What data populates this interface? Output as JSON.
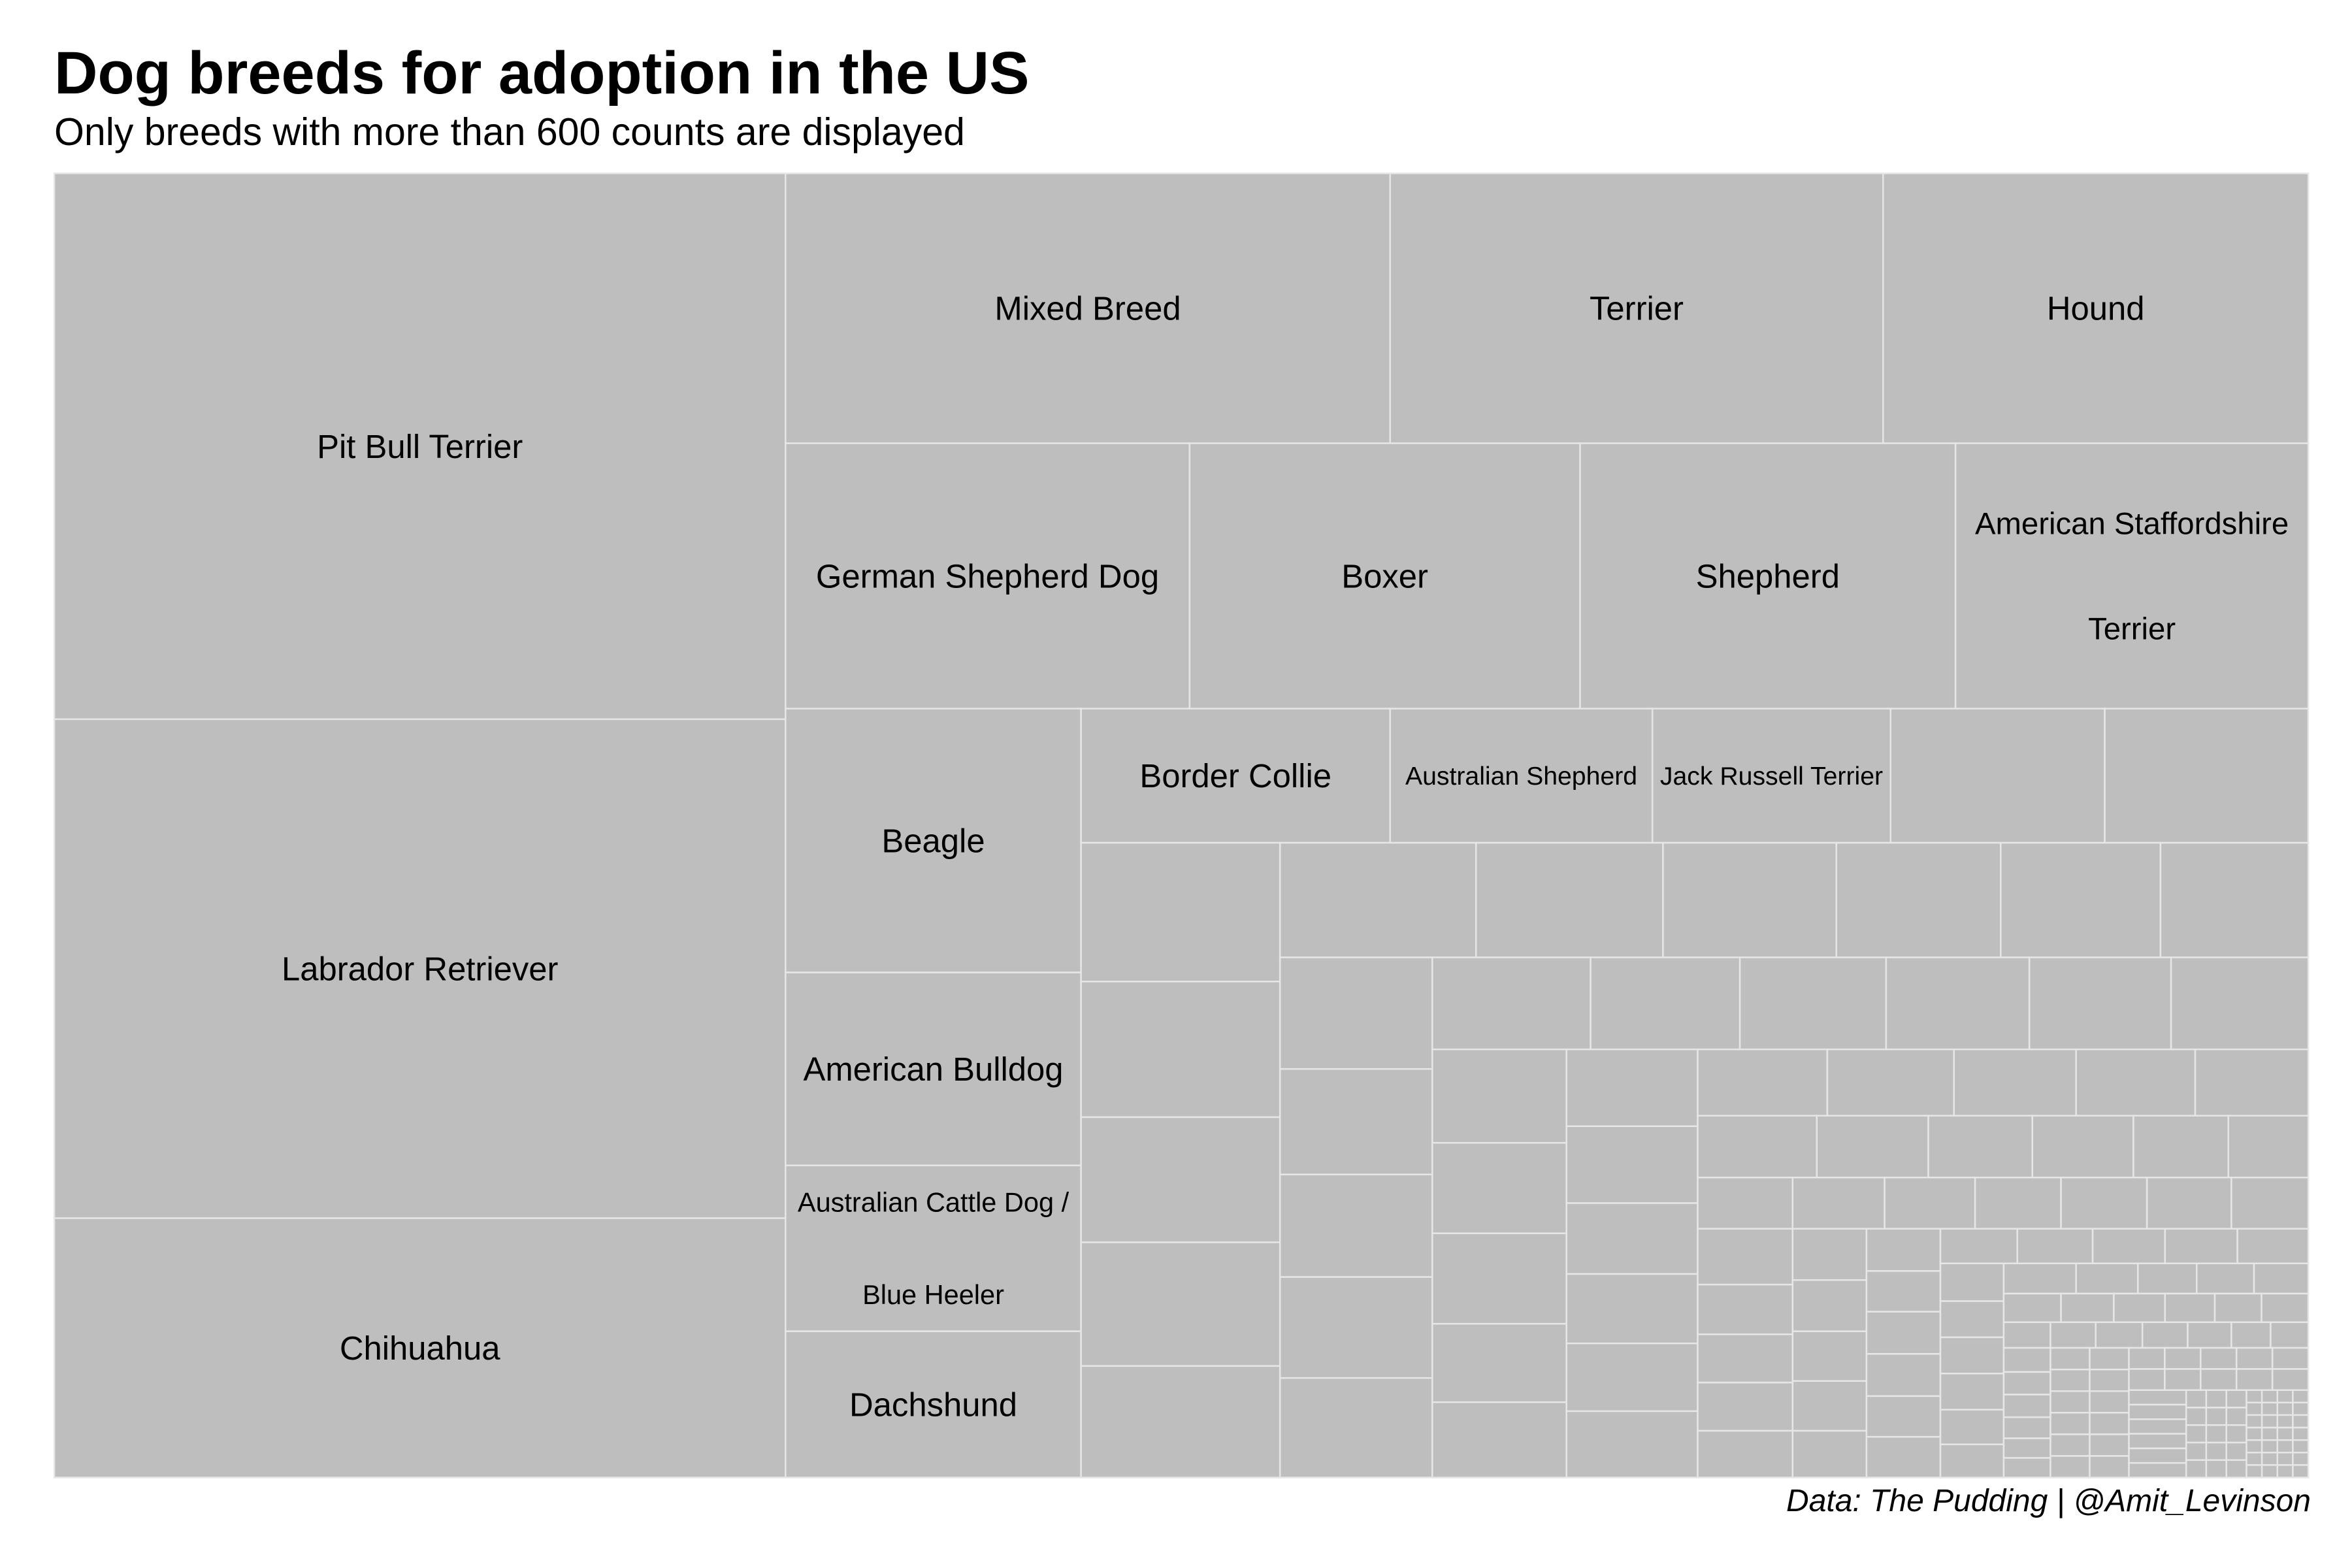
{
  "chart_data": {
    "type": "treemap",
    "title": "Dog breeds for adoption in the US",
    "subtitle": "Only breeds with more than 600 counts are displayed",
    "caption": "Data: The Pudding | @Amit_Levinson",
    "fill_color": "#bebebe",
    "border_color": "#e6e6e6",
    "labeled_breeds": [
      {
        "name": "Pit Bull Terrier",
        "lines": [
          "Pit Bull Terrier"
        ]
      },
      {
        "name": "Labrador Retriever",
        "lines": [
          "Labrador Retriever"
        ]
      },
      {
        "name": "Chihuahua",
        "lines": [
          "Chihuahua"
        ]
      },
      {
        "name": "Mixed Breed",
        "lines": [
          "Mixed Breed"
        ]
      },
      {
        "name": "Terrier",
        "lines": [
          "Terrier"
        ]
      },
      {
        "name": "Hound",
        "lines": [
          "Hound"
        ]
      },
      {
        "name": "German Shepherd Dog",
        "lines": [
          "German Shepherd Dog"
        ]
      },
      {
        "name": "Boxer",
        "lines": [
          "Boxer"
        ]
      },
      {
        "name": "Shepherd",
        "lines": [
          "Shepherd"
        ]
      },
      {
        "name": "American Staffordshire Terrier",
        "lines": [
          "American Staffordshire",
          "Terrier"
        ]
      },
      {
        "name": "Beagle",
        "lines": [
          "Beagle"
        ]
      },
      {
        "name": "American Bulldog",
        "lines": [
          "American Bulldog"
        ]
      },
      {
        "name": "Australian Cattle Dog / Blue Heeler",
        "lines": [
          "Australian Cattle Dog /",
          "Blue Heeler"
        ]
      },
      {
        "name": "Dachshund",
        "lines": [
          "Dachshund"
        ]
      },
      {
        "name": "Border Collie",
        "lines": [
          "Border Collie"
        ]
      },
      {
        "name": "Australian Shepherd",
        "lines": [
          "Australian Shepherd"
        ]
      },
      {
        "name": "Jack Russell Terrier",
        "lines": [
          "Jack Russell Terrier"
        ]
      }
    ]
  }
}
